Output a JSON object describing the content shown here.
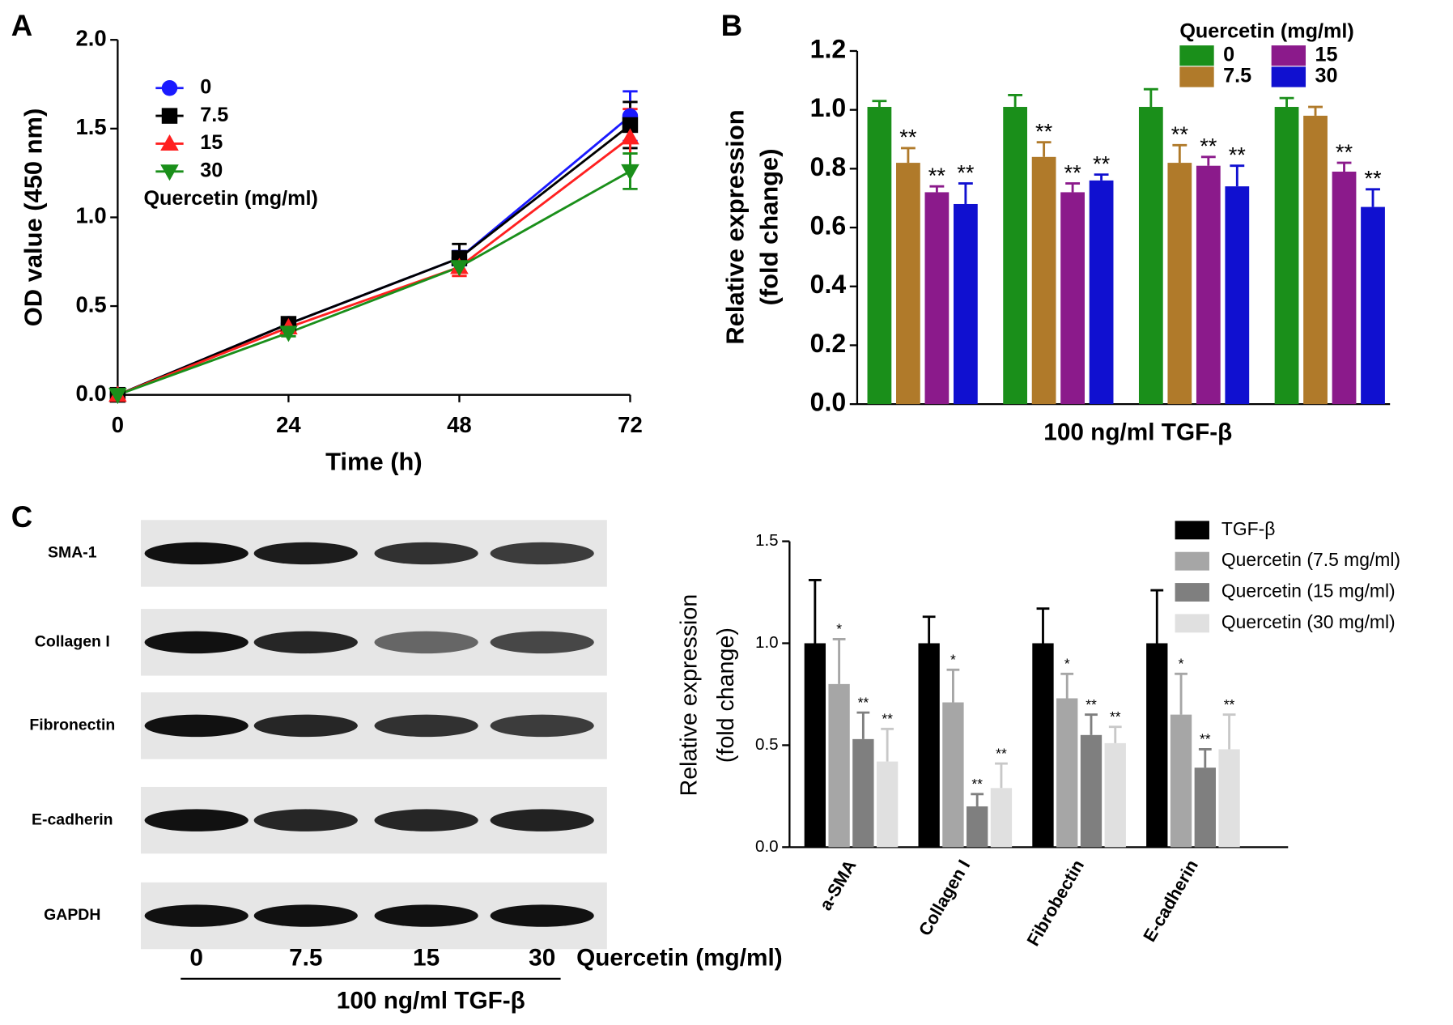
{
  "chart_data": [
    {
      "type": "line",
      "panel": "A",
      "xlabel": "Time (h)",
      "ylabel": "OD value (450 nm)",
      "legend_title": "Quercetin (mg/ml)",
      "x": [
        0,
        24,
        48,
        72
      ],
      "xlim": [
        0,
        72
      ],
      "xticks": [
        0,
        24,
        48,
        72
      ],
      "ylim": [
        0,
        2
      ],
      "yticks": [
        {
          "value": 0,
          "label": "0.0"
        },
        0.5,
        {
          "value": 1,
          "label": "1.0"
        },
        1.5,
        {
          "value": 2,
          "label": "2.0"
        }
      ],
      "series": [
        {
          "name": "0",
          "color": "#1a1aff",
          "marker": "circle",
          "values": [
            0,
            0.4,
            0.77,
            1.57
          ],
          "errors": [
            0.01,
            0.02,
            0.04,
            0.14
          ]
        },
        {
          "name": "7.5",
          "color": "#000000",
          "marker": "square",
          "values": [
            0,
            0.4,
            0.77,
            1.52
          ],
          "errors": [
            0.01,
            0.03,
            0.08,
            0.13
          ]
        },
        {
          "name": "15",
          "color": "#ff2020",
          "marker": "triangle-up",
          "values": [
            0,
            0.38,
            0.72,
            1.45
          ],
          "errors": [
            0.01,
            0.02,
            0.05,
            0.16
          ]
        },
        {
          "name": "30",
          "color": "#1a8f1a",
          "marker": "triangle-down",
          "values": [
            0,
            0.35,
            0.72,
            1.26
          ],
          "errors": [
            0.01,
            0.02,
            0.03,
            0.1
          ]
        }
      ]
    },
    {
      "type": "bar",
      "panel": "B",
      "xlabel": "100 ng/ml TGF-β",
      "ylabel": [
        "Relative expression",
        "(fold change)"
      ],
      "legend_title": "Quercetin (mg/ml)",
      "categories": [
        null,
        null,
        null,
        null
      ],
      "ylim": [
        0,
        1.2
      ],
      "yticks": [
        {
          "value": 0,
          "label": "0.0"
        },
        0.2,
        0.4,
        0.6,
        0.8,
        {
          "value": 1,
          "label": "1.0"
        },
        1.2
      ],
      "series": [
        {
          "name": "0",
          "color": "#1a8f1a",
          "values": [
            1.01,
            1.01,
            1.01,
            1.01
          ],
          "errors": [
            0.02,
            0.04,
            0.06,
            0.03
          ],
          "significance": [
            null,
            null,
            null,
            null
          ]
        },
        {
          "name": "7.5",
          "color": "#b07a2a",
          "values": [
            0.82,
            0.84,
            0.82,
            0.98
          ],
          "errors": [
            0.05,
            0.05,
            0.06,
            0.03
          ],
          "significance": [
            "**",
            "**",
            "**",
            null
          ]
        },
        {
          "name": "15",
          "color": "#8b1a8b",
          "values": [
            0.72,
            0.72,
            0.81,
            0.79
          ],
          "errors": [
            0.02,
            0.03,
            0.03,
            0.03
          ],
          "significance": [
            "**",
            "**",
            "**",
            "**"
          ]
        },
        {
          "name": "30",
          "color": "#1010d0",
          "values": [
            0.68,
            0.76,
            0.74,
            0.67
          ],
          "errors": [
            0.07,
            0.02,
            0.07,
            0.06
          ],
          "significance": [
            "**",
            "**",
            "**",
            "**"
          ]
        }
      ]
    },
    {
      "type": "bar",
      "ylabel": [
        "Relative expression",
        "(fold change)"
      ],
      "categories": [
        "a-SMA",
        "Collagen I",
        "Fibrobectin",
        "E-cadherin"
      ],
      "ylim": [
        0,
        1.5
      ],
      "yticks": [
        {
          "value": 0,
          "label": "0.0"
        },
        0.5,
        {
          "value": 1,
          "label": "1.0"
        },
        1.5
      ],
      "series": [
        {
          "name": "TGF-β",
          "color": "#000000",
          "values": [
            1,
            1,
            1,
            1
          ],
          "errors": [
            0.31,
            0.13,
            0.17,
            0.26
          ],
          "significance": [
            null,
            null,
            null,
            null
          ]
        },
        {
          "name": "Quercetin (7.5 mg/ml)",
          "color": "#a6a6a6",
          "values": [
            0.8,
            0.71,
            0.73,
            0.65
          ],
          "errors": [
            0.22,
            0.16,
            0.12,
            0.2
          ],
          "significance": [
            "*",
            "*",
            "*",
            "*"
          ]
        },
        {
          "name": "Quercetin (15 mg/ml)",
          "color": "#7f7f7f",
          "values": [
            0.53,
            0.2,
            0.55,
            0.39
          ],
          "errors": [
            0.13,
            0.06,
            0.1,
            0.09
          ],
          "significance": [
            "**",
            "**",
            "**",
            "**"
          ]
        },
        {
          "name": "Quercetin (30 mg/ml)",
          "color": "#e0e0e0",
          "values": [
            0.42,
            0.29,
            0.51,
            0.48
          ],
          "errors": [
            0.16,
            0.12,
            0.08,
            0.17
          ],
          "significance": [
            "**",
            "**",
            "**",
            "**"
          ]
        }
      ]
    }
  ],
  "blot": {
    "panel": "C",
    "rows": [
      "SMA-1",
      "Collagen I",
      "Fibronectin",
      "E-cadherin",
      "GAPDH"
    ],
    "lanes": [
      "0",
      "7.5",
      "15",
      "30"
    ],
    "lane_title": "Quercetin (mg/ml)",
    "treatment": "100 ng/ml TGF-β"
  }
}
